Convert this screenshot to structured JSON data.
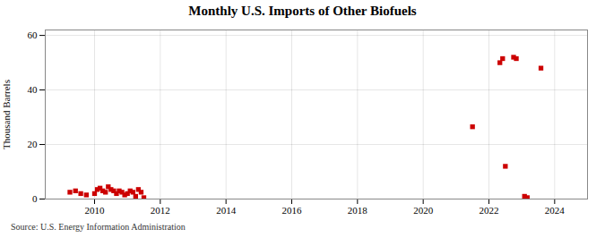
{
  "chart_data": {
    "type": "scatter",
    "title": "Monthly U.S. Imports of Other Biofuels",
    "ylabel": "Thousand Barrels",
    "source": "Source: U.S. Energy Information Administration",
    "color": "#cc0000",
    "marker": "square",
    "grid": true,
    "xlim": [
      2008.5,
      2025.0
    ],
    "ylim": [
      0,
      62
    ],
    "xticks": [
      2010,
      2012,
      2014,
      2016,
      2018,
      2020,
      2022,
      2024
    ],
    "yticks": [
      0,
      20,
      40,
      60
    ],
    "x": [
      2009.25,
      2009.42,
      2009.58,
      2009.75,
      2010.0,
      2010.083,
      2010.167,
      2010.25,
      2010.333,
      2010.417,
      2010.5,
      2010.583,
      2010.667,
      2010.75,
      2010.833,
      2010.917,
      2011.0,
      2011.083,
      2011.167,
      2011.25,
      2011.333,
      2011.417,
      2011.5,
      2021.5,
      2022.333,
      2022.417,
      2022.5,
      2022.75,
      2022.833,
      2023.083,
      2023.167,
      2023.583
    ],
    "values": [
      2.5,
      3.0,
      2.0,
      1.5,
      2.0,
      3.5,
      4.0,
      3.0,
      2.5,
      4.5,
      3.5,
      3.0,
      2.0,
      3.0,
      2.5,
      1.5,
      2.0,
      3.0,
      2.5,
      1.0,
      3.5,
      2.5,
      0.5,
      26.5,
      50.0,
      51.5,
      12.0,
      52.0,
      51.5,
      1.0,
      0.5,
      48.0
    ]
  }
}
